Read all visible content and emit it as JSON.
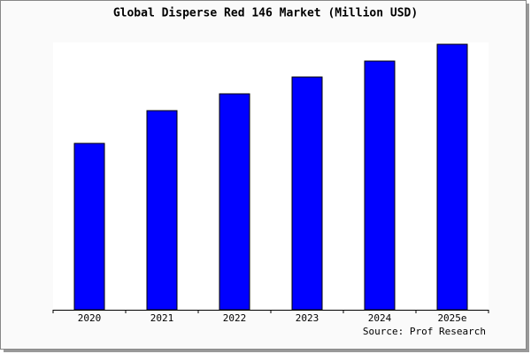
{
  "chart_data": {
    "type": "bar",
    "title": "Global Disperse Red 146 Market (Million USD)",
    "categories": [
      "2020",
      "2021",
      "2022",
      "2023",
      "2024",
      "2025e"
    ],
    "values": [
      188,
      225,
      244,
      263,
      281,
      300
    ],
    "color": "#0000ff",
    "source": "Source: Prof Research"
  }
}
